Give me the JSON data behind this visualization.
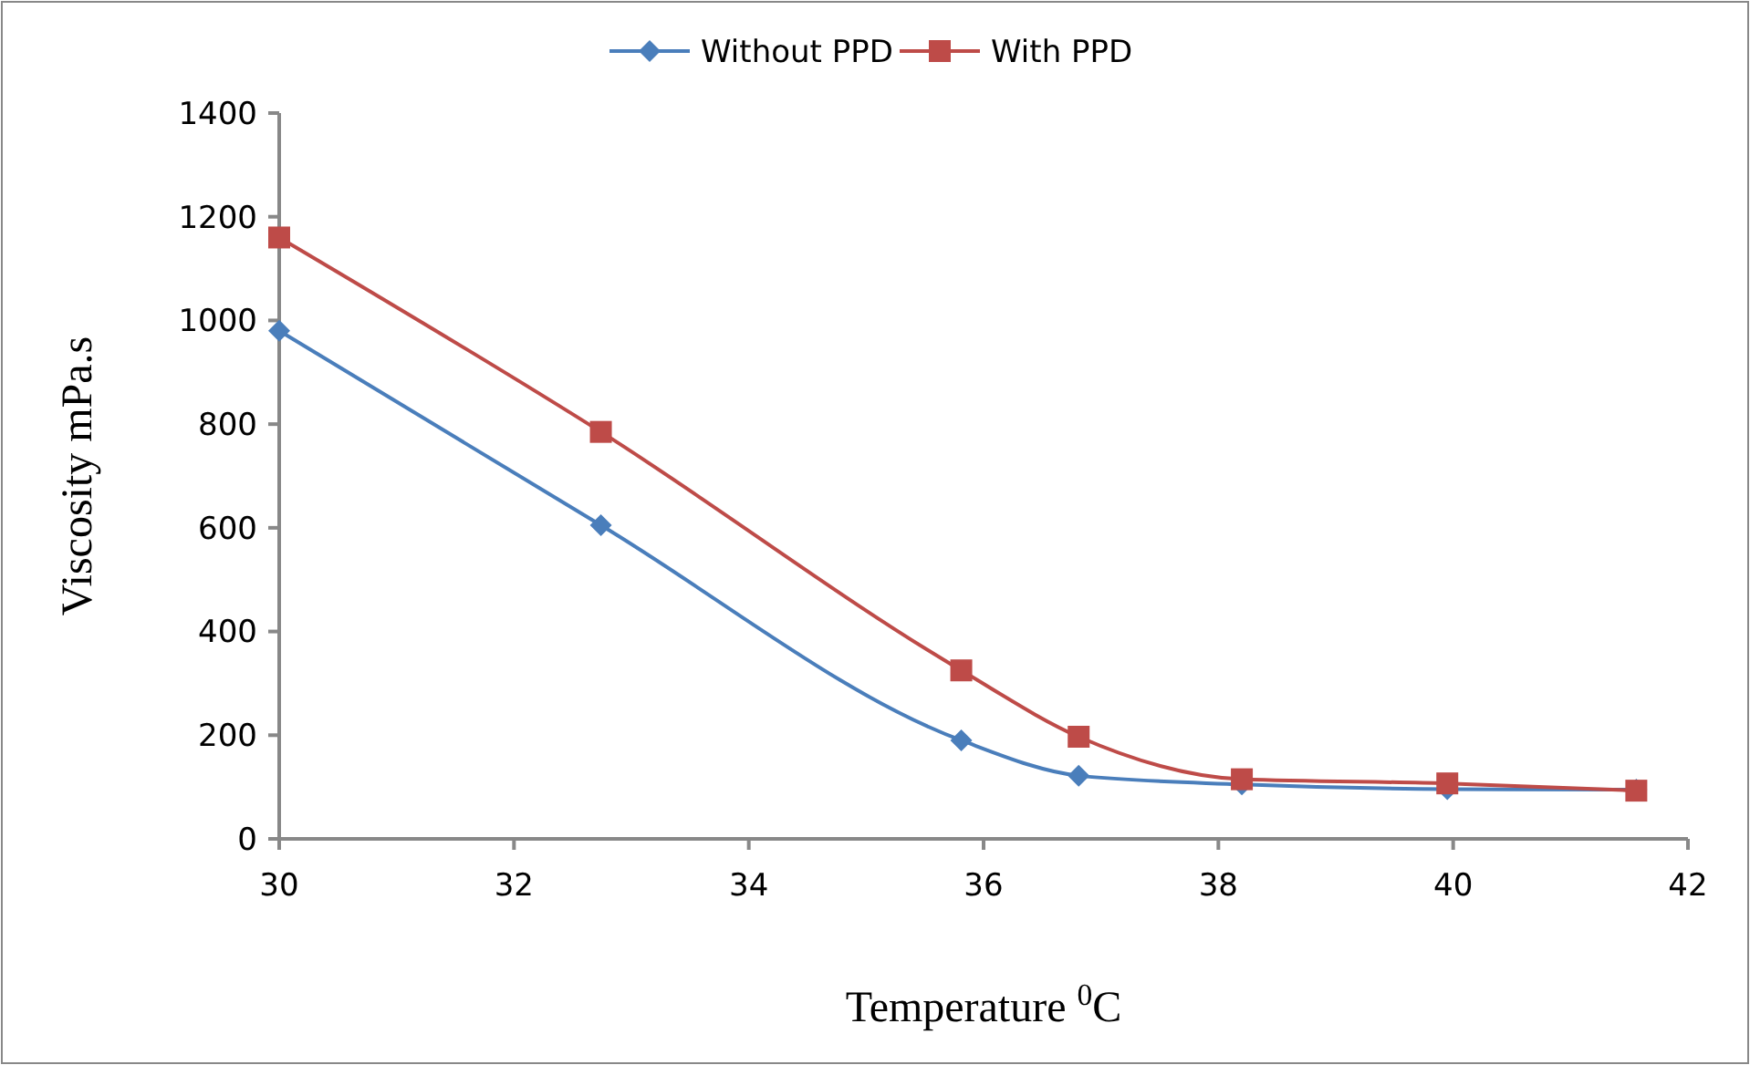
{
  "chart_data": {
    "type": "line",
    "xlabel": "Temperature $^{0}$C",
    "ylabel": "Viscosity mPa.s",
    "x": [
      30,
      32.74,
      35.81,
      36.81,
      38.2,
      39.95,
      41.56
    ],
    "series": [
      {
        "name": "Without PPD",
        "color": "#4a7ebb",
        "marker": "diamond",
        "values": [
          980,
          605,
          190,
          122,
          105,
          96,
          95
        ]
      },
      {
        "name": "With PPD",
        "color": "#be4b48",
        "marker": "square",
        "values": [
          1160,
          785,
          325,
          197,
          115,
          107,
          93
        ]
      }
    ],
    "xlim": [
      30,
      42
    ],
    "xticks": [
      30,
      32,
      34,
      36,
      38,
      40,
      42
    ],
    "ylim": [
      0,
      1400
    ],
    "yticks": [
      0,
      200,
      400,
      600,
      800,
      1000,
      1200,
      1400
    ],
    "grid": false,
    "legend": "top"
  }
}
